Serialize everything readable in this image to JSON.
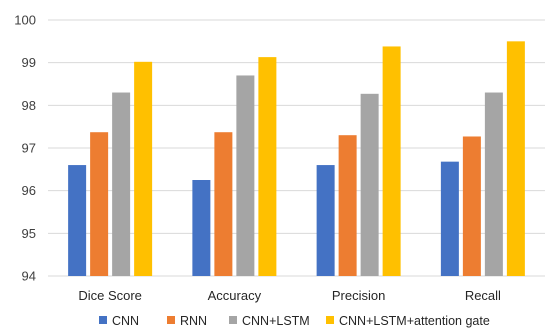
{
  "chart_data": {
    "type": "bar",
    "title": "",
    "xlabel": "",
    "ylabel": "",
    "categories": [
      "Dice Score",
      "Accuracy",
      "Precision",
      "Recall"
    ],
    "series": [
      {
        "name": "CNN",
        "color": "#4472C4",
        "values": [
          96.6,
          96.25,
          96.6,
          96.68
        ]
      },
      {
        "name": "RNN",
        "color": "#ED7D31",
        "values": [
          97.37,
          97.37,
          97.3,
          97.27
        ]
      },
      {
        "name": "CNN+LSTM",
        "color": "#A5A5A5",
        "values": [
          98.3,
          98.7,
          98.27,
          98.3
        ]
      },
      {
        "name": "CNN+LSTM+attention gate",
        "color": "#FFC000",
        "values": [
          99.02,
          99.13,
          99.38,
          99.5
        ]
      }
    ],
    "ylim": [
      94,
      100
    ],
    "yticks": [
      "94",
      "95",
      "96",
      "97",
      "98",
      "99",
      "100"
    ],
    "grid": true,
    "legend_position": "bottom"
  }
}
